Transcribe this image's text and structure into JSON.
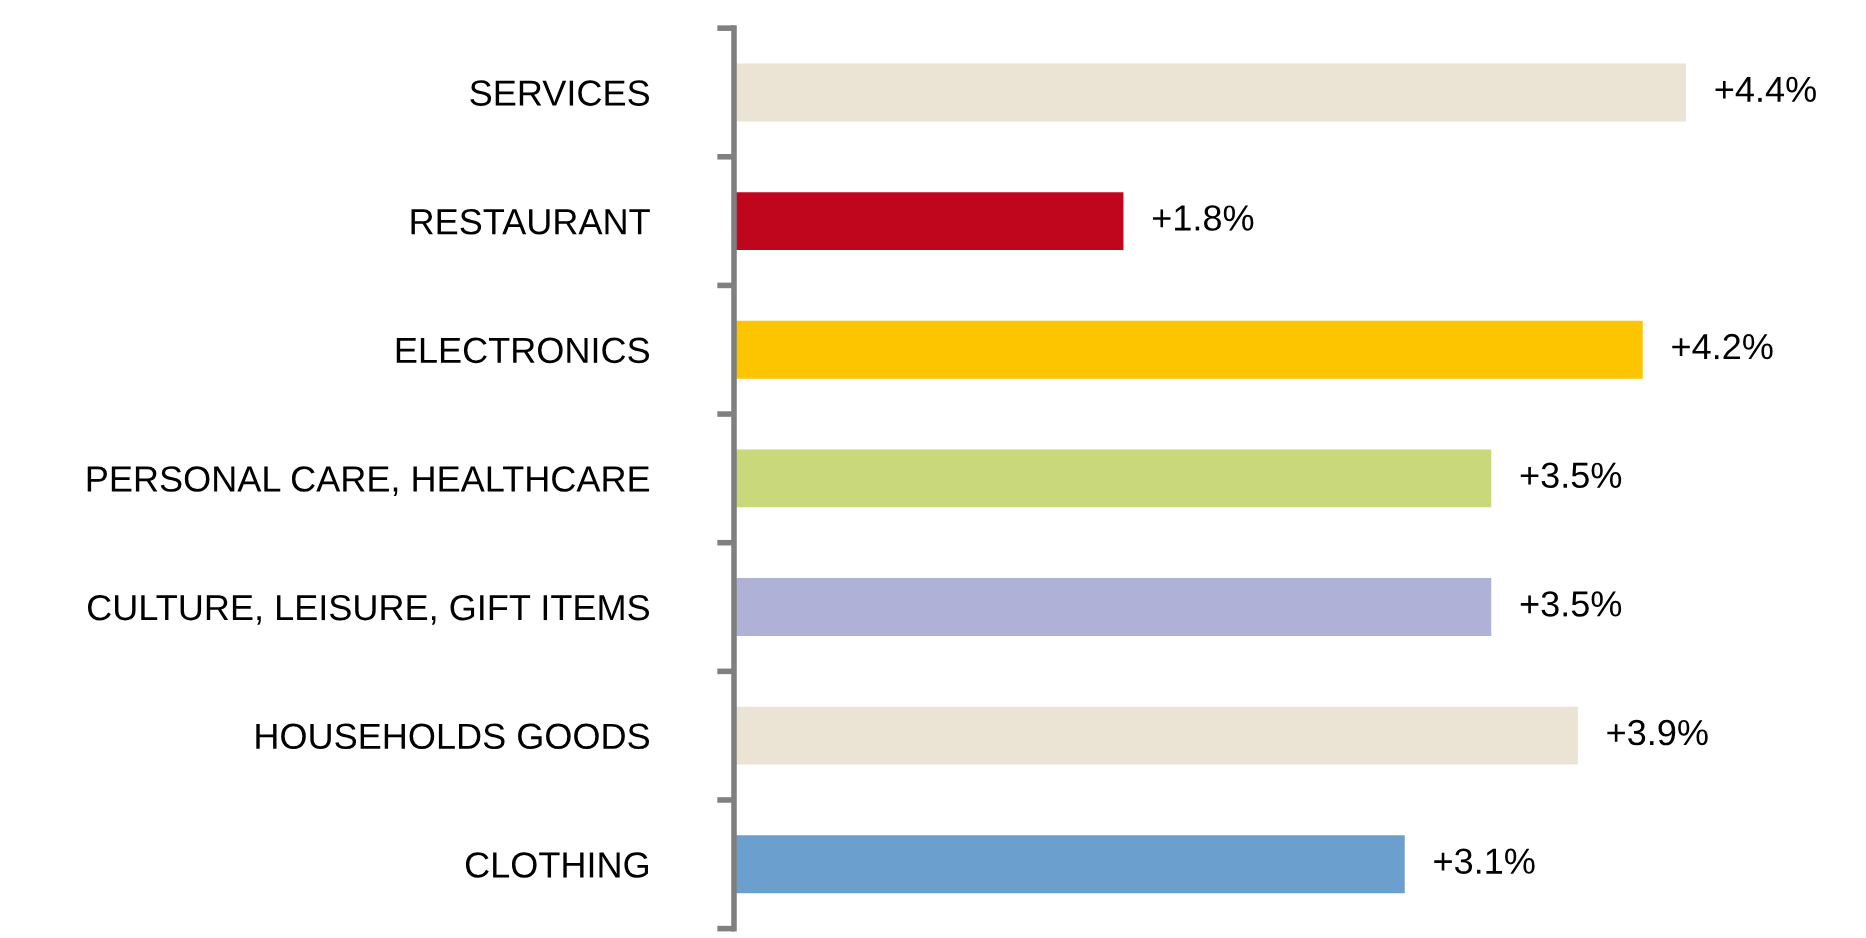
{
  "chart_data": {
    "type": "bar",
    "orientation": "horizontal",
    "categories": [
      "SERVICES",
      "RESTAURANT",
      "ELECTRONICS",
      "PERSONAL CARE, HEALTHCARE",
      "CULTURE, LEISURE, GIFT ITEMS",
      "HOUSEHOLDS GOODS",
      "CLOTHING"
    ],
    "values": [
      4.4,
      1.8,
      4.2,
      3.5,
      3.5,
      3.9,
      3.1
    ],
    "colors": [
      "#ebe3d3",
      "#c0061c",
      "#fcc500",
      "#c8d87a",
      "#b0b1d6",
      "#ebe3d3",
      "#6b9fce"
    ],
    "value_labels": [
      "+4.4%",
      "+1.8%",
      "+4.2%",
      "+3.5%",
      "+3.5%",
      "+3.9%",
      "+3.1%"
    ],
    "grid": false,
    "legend": false
  }
}
